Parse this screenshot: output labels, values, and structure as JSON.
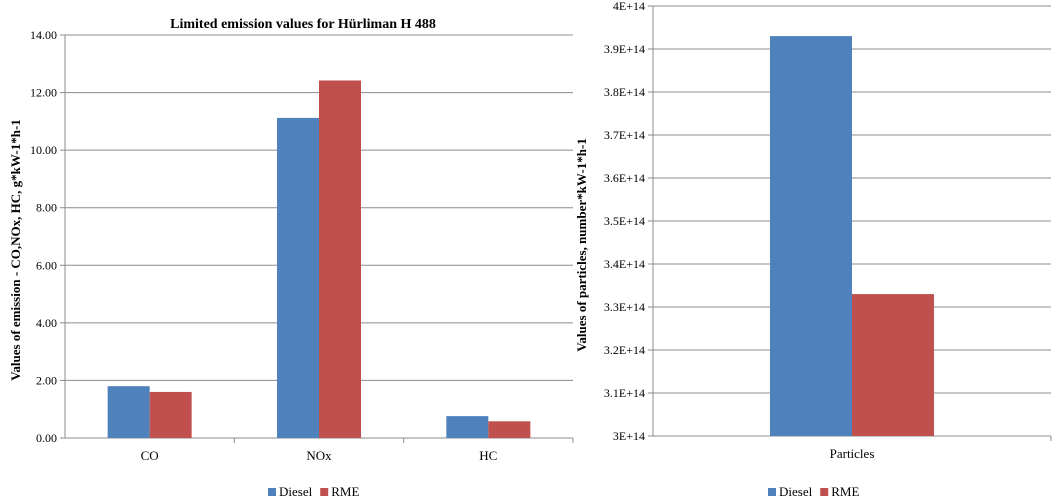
{
  "chart_data": [
    {
      "type": "bar",
      "title": "Limited emission values for Hürliman H 488",
      "ylabel": "Values of emission - CO,NOx, HC, g*kW-1*h-1",
      "xlabel": "",
      "categories": [
        "CO",
        "NOx",
        "HC"
      ],
      "series": [
        {
          "name": "Diesel",
          "color": "#4f81bd",
          "values": [
            1.8,
            11.12,
            0.76
          ]
        },
        {
          "name": "RME",
          "color": "#c0504d",
          "values": [
            1.6,
            12.42,
            0.58
          ]
        }
      ],
      "ylim": [
        0,
        14
      ],
      "yticks": [
        "0.00",
        "2.00",
        "4.00",
        "6.00",
        "8.00",
        "10.00",
        "12.00",
        "14.00"
      ],
      "grid": true,
      "legend": "bottom"
    },
    {
      "type": "bar",
      "title": "",
      "ylabel": "Values of particles, number*kW-1*h-1",
      "xlabel": "",
      "categories": [
        "Particles"
      ],
      "series": [
        {
          "name": "Diesel",
          "color": "#4f81bd",
          "values": [
            393000000000000.0
          ]
        },
        {
          "name": "RME",
          "color": "#c0504d",
          "values": [
            333000000000000.0
          ]
        }
      ],
      "ylim": [
        300000000000000.0,
        400000000000000.0
      ],
      "yticks": [
        "3E+14",
        "3.1E+14",
        "3.2E+14",
        "3.3E+14",
        "3.4E+14",
        "3.5E+14",
        "3.6E+14",
        "3.7E+14",
        "3.8E+14",
        "3.9E+14",
        "4E+14"
      ],
      "grid": true,
      "legend": "bottom"
    }
  ]
}
